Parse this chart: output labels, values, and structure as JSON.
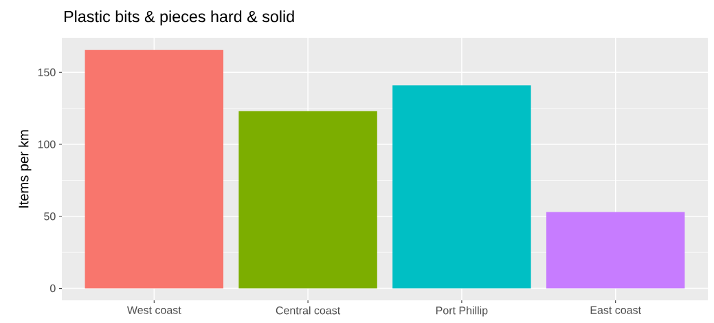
{
  "chart_data": {
    "type": "bar",
    "title": "Plastic bits & pieces hard & solid",
    "ylabel": "Items per km",
    "categories": [
      "West coast",
      "Central coast",
      "Port Phillip",
      "East coast"
    ],
    "values": [
      165.5,
      123,
      141,
      53
    ],
    "colors": [
      "#f8766d",
      "#7cae00",
      "#00bfc4",
      "#c77cff"
    ],
    "ylim": [
      -8.3,
      174
    ],
    "yticks": [
      0,
      50,
      100,
      150
    ],
    "grid": true
  }
}
